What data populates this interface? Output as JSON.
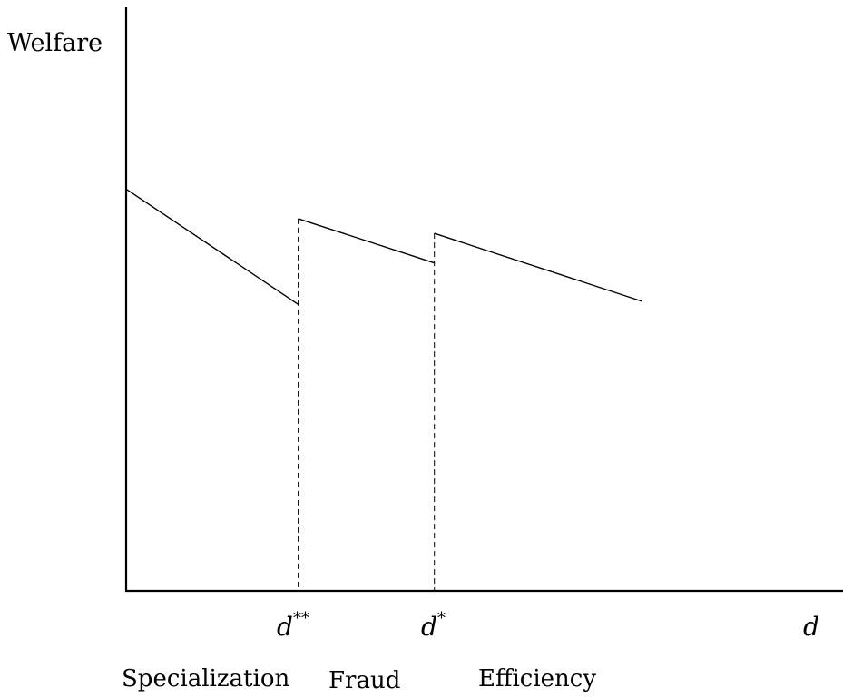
{
  "chart_data": {
    "type": "line",
    "ylabel": "Welfare",
    "xlabel": "d",
    "xlim": [
      0,
      10
    ],
    "ylim": [
      0,
      10
    ],
    "thresholds": [
      {
        "id": "d2",
        "base": "d",
        "sup": "**",
        "x": 2.4
      },
      {
        "id": "d1",
        "base": "d",
        "sup": "*",
        "x": 4.3
      }
    ],
    "series": [
      {
        "points": [
          [
            0,
            6.8
          ],
          [
            2.4,
            4.85
          ]
        ]
      },
      {
        "points": [
          [
            2.4,
            6.3
          ],
          [
            4.3,
            5.55
          ]
        ]
      },
      {
        "points": [
          [
            4.3,
            6.05
          ],
          [
            7.2,
            4.9
          ]
        ]
      }
    ],
    "regions": [
      "Specialization",
      "Fraud",
      "Efficiency"
    ],
    "grid": false,
    "legend": "none"
  }
}
